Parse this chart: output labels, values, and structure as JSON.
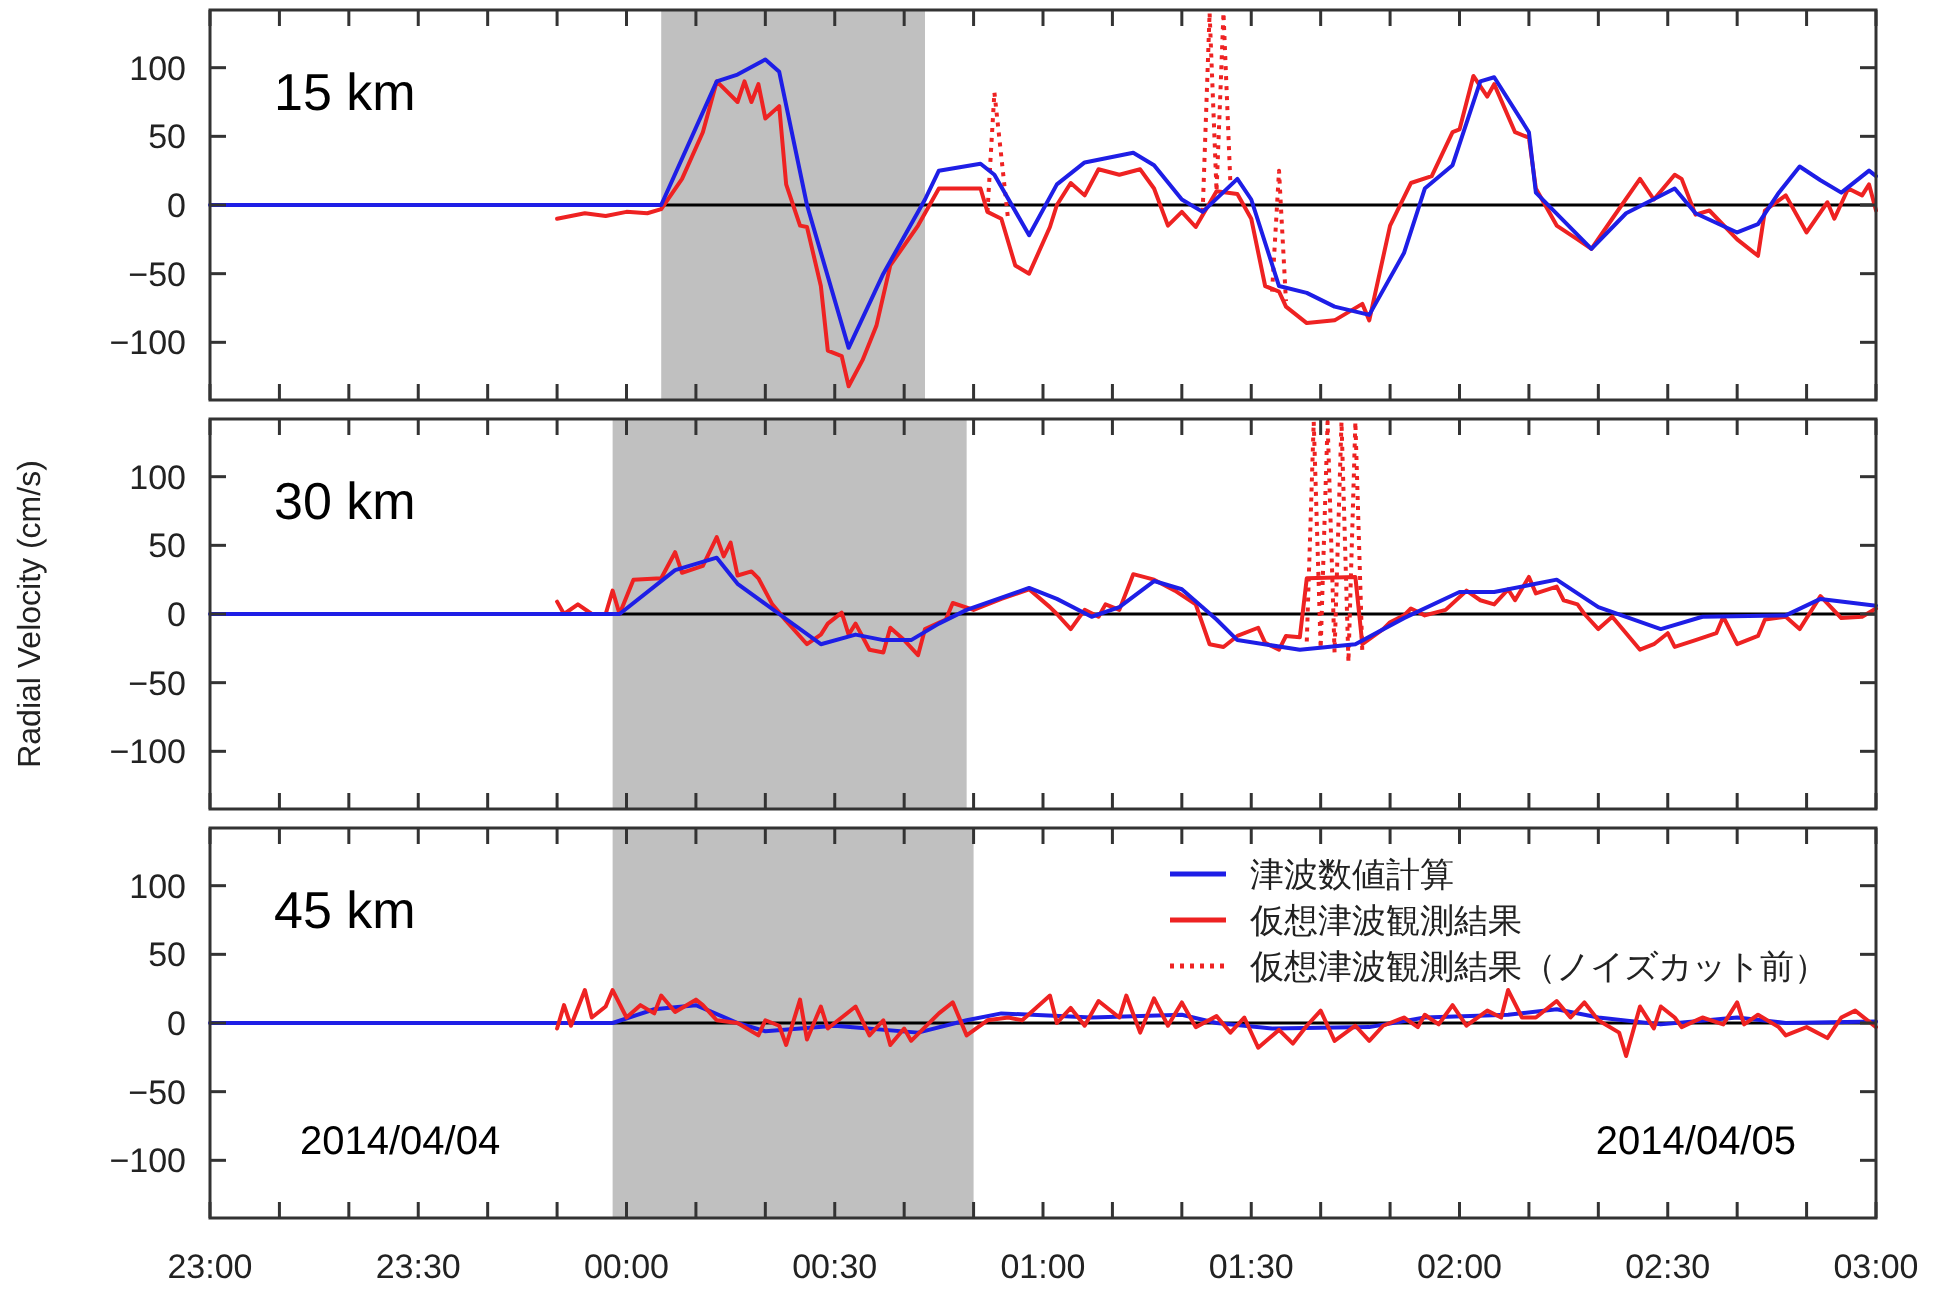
{
  "chart_data": [
    {
      "type": "line",
      "annotations": [
        "15 km"
      ],
      "xlim": [
        "2014-04-04T23:00",
        "2014-04-05T03:00"
      ],
      "ylim": [
        -142,
        142
      ],
      "yticks": [
        -100,
        -50,
        0,
        50,
        100
      ],
      "tick_labels": "y",
      "legend": false,
      "xticks": [
        {
          "value": "2014-04-04T23:00",
          "label": null
        },
        {
          "value": "2014-04-04T23:10",
          "label": null
        },
        {
          "value": "2014-04-04T23:20",
          "label": null
        },
        {
          "value": "2014-04-04T23:30",
          "label": null
        },
        {
          "value": "2014-04-04T23:40",
          "label": null
        },
        {
          "value": "2014-04-04T23:50",
          "label": null
        },
        {
          "value": "2014-04-05T00:00",
          "label": null
        },
        {
          "value": "2014-04-05T00:10",
          "label": null
        },
        {
          "value": "2014-04-05T00:20",
          "label": null
        },
        {
          "value": "2014-04-05T00:30",
          "label": null
        },
        {
          "value": "2014-04-05T00:40",
          "label": null
        },
        {
          "value": "2014-04-05T00:50",
          "label": null
        },
        {
          "value": "2014-04-05T01:00",
          "label": null
        },
        {
          "value": "2014-04-05T01:10",
          "label": null
        },
        {
          "value": "2014-04-05T01:20",
          "label": null
        },
        {
          "value": "2014-04-05T01:30",
          "label": null
        },
        {
          "value": "2014-04-05T01:40",
          "label": null
        },
        {
          "value": "2014-04-05T01:50",
          "label": null
        },
        {
          "value": "2014-04-05T02:00",
          "label": null
        },
        {
          "value": "2014-04-05T02:10",
          "label": null
        },
        {
          "value": "2014-04-05T02:20",
          "label": null
        },
        {
          "value": "2014-04-05T02:30",
          "label": null
        },
        {
          "value": "2014-04-05T02:40",
          "label": null
        },
        {
          "value": "2014-04-05T02:50",
          "label": null
        },
        {
          "value": "2014-04-05T03:00",
          "label": null
        }
      ],
      "bands": [
        {
          "axis": "x",
          "from": "2014-04-05T00:05",
          "to": "2014-04-05T00:43",
          "color": "#c0c0c0"
        }
      ],
      "ref_lines": [
        {
          "axis": "y",
          "value": 0,
          "color": "#000000"
        }
      ],
      "series": [
        {
          "color": "#ee2222",
          "line_style": "solid",
          "x": [
            "2014-04-04T23:50",
            "2014-04-04T23:54",
            "2014-04-04T23:57",
            "2014-04-05T00:00",
            "2014-04-05T00:03",
            "2014-04-05T00:05",
            "2014-04-05T00:08",
            "2014-04-05T00:11",
            "2014-04-05T00:13",
            "2014-04-05T00:16",
            "2014-04-05T00:17",
            "2014-04-05T00:18",
            "2014-04-05T00:19",
            "2014-04-05T00:20",
            "2014-04-05T00:22",
            "2014-04-05T00:23",
            "2014-04-05T00:25",
            "2014-04-05T00:26",
            "2014-04-05T00:28",
            "2014-04-05T00:29",
            "2014-04-05T00:31",
            "2014-04-05T00:32",
            "2014-04-05T00:34",
            "2014-04-05T00:36",
            "2014-04-05T00:38",
            "2014-04-05T00:42",
            "2014-04-05T00:45",
            "2014-04-05T00:51",
            "2014-04-05T00:52",
            "2014-04-05T00:54",
            "2014-04-05T00:56",
            "2014-04-05T00:58",
            "2014-04-05T01:01",
            "2014-04-05T01:02",
            "2014-04-05T01:04",
            "2014-04-05T01:06",
            "2014-04-05T01:08",
            "2014-04-05T01:11",
            "2014-04-05T01:14",
            "2014-04-05T01:16",
            "2014-04-05T01:18",
            "2014-04-05T01:20",
            "2014-04-05T01:22",
            "2014-04-05T01:25",
            "2014-04-05T01:28",
            "2014-04-05T01:30",
            "2014-04-05T01:32",
            "2014-04-05T01:34",
            "2014-04-05T01:35",
            "2014-04-05T01:38",
            "2014-04-05T01:42",
            "2014-04-05T01:46",
            "2014-04-05T01:47",
            "2014-04-05T01:50",
            "2014-04-05T01:53",
            "2014-04-05T01:56",
            "2014-04-05T01:59",
            "2014-04-05T02:00",
            "2014-04-05T02:02",
            "2014-04-05T02:04",
            "2014-04-05T02:05",
            "2014-04-05T02:08",
            "2014-04-05T02:10",
            "2014-04-05T02:11",
            "2014-04-05T02:14",
            "2014-04-05T02:17",
            "2014-04-05T02:19",
            "2014-04-05T02:22",
            "2014-04-05T02:26",
            "2014-04-05T02:28",
            "2014-04-05T02:31",
            "2014-04-05T02:32",
            "2014-04-05T02:34",
            "2014-04-05T02:36",
            "2014-04-05T02:40",
            "2014-04-05T02:43",
            "2014-04-05T02:44",
            "2014-04-05T02:47",
            "2014-04-05T02:50",
            "2014-04-05T02:53",
            "2014-04-05T02:54",
            "2014-04-05T02:56",
            "2014-04-05T02:58",
            "2014-04-05T02:59",
            "2014-04-05T03:00"
          ],
          "values": [
            -10,
            -6,
            -8,
            -5,
            -6,
            -3,
            19,
            53,
            90,
            75,
            90,
            75,
            88,
            63,
            72,
            15,
            -15,
            -16,
            -59,
            -106,
            -110,
            -132,
            -113,
            -88,
            -44,
            -15,
            12,
            12,
            -5,
            -10,
            -44,
            -50,
            -16,
            0,
            16,
            7,
            26,
            22,
            26,
            12,
            -15,
            -5,
            -16,
            10,
            8,
            -10,
            -59,
            -63,
            -74,
            -86,
            -84,
            -72,
            -84,
            -15,
            16,
            21,
            53,
            55,
            94,
            79,
            88,
            53,
            49,
            12,
            -15,
            -25,
            -32,
            -10,
            19,
            4,
            22,
            19,
            -7,
            -4,
            -25,
            -37,
            -4,
            7,
            -20,
            2,
            -10,
            12,
            7,
            15,
            -4
          ]
        },
        {
          "color": "#ee2222",
          "line_style": "dotted",
          "x": [
            "2014-04-05T00:52",
            "2014-04-05T00:53",
            "2014-04-05T00:55",
            "2014-04-05T00:56",
            "2014-04-05T01:23",
            "2014-04-05T01:24",
            "2014-04-05T01:25",
            "2014-04-05T01:26",
            "2014-04-05T01:27",
            "2014-04-05T01:28",
            "2014-04-05T01:33",
            "2014-04-05T01:34",
            "2014-04-05T01:35"
          ],
          "values": [
            -5,
            82,
            -12,
            null,
            -5,
            140,
            10,
            140,
            15,
            null,
            -63,
            25,
            -70
          ]
        },
        {
          "color": "#1e1ee6",
          "line_style": "solid",
          "x": [
            "2014-04-04T23:00",
            "2014-04-05T00:05",
            "2014-04-05T00:13",
            "2014-04-05T00:16",
            "2014-04-05T00:20",
            "2014-04-05T00:22",
            "2014-04-05T00:26",
            "2014-04-05T00:32",
            "2014-04-05T00:37",
            "2014-04-05T00:43",
            "2014-04-05T00:45",
            "2014-04-05T00:51",
            "2014-04-05T00:53",
            "2014-04-05T00:58",
            "2014-04-05T01:02",
            "2014-04-05T01:06",
            "2014-04-05T01:13",
            "2014-04-05T01:16",
            "2014-04-05T01:20",
            "2014-04-05T01:23",
            "2014-04-05T01:28",
            "2014-04-05T01:30",
            "2014-04-05T01:34",
            "2014-04-05T01:38",
            "2014-04-05T01:42",
            "2014-04-05T01:47",
            "2014-04-05T01:52",
            "2014-04-05T01:55",
            "2014-04-05T01:59",
            "2014-04-05T02:03",
            "2014-04-05T02:05",
            "2014-04-05T02:10",
            "2014-04-05T02:11",
            "2014-04-05T02:19",
            "2014-04-05T02:24",
            "2014-04-05T02:31",
            "2014-04-05T02:34",
            "2014-04-05T02:40",
            "2014-04-05T02:43",
            "2014-04-05T02:46",
            "2014-04-05T02:49",
            "2014-04-05T02:52",
            "2014-04-05T02:55",
            "2014-04-05T02:59",
            "2014-04-05T03:00"
          ],
          "values": [
            0,
            0,
            90,
            95,
            106,
            97,
            0,
            -104,
            -50,
            4,
            25,
            30,
            22,
            -22,
            15,
            31,
            38,
            29,
            4,
            -5,
            19,
            4,
            -59,
            -64,
            -74,
            -80,
            -35,
            12,
            29,
            90,
            93,
            53,
            9,
            -32,
            -6,
            12,
            -6,
            -20,
            -14,
            9,
            28,
            18,
            9,
            25,
            21
          ]
        }
      ]
    },
    {
      "type": "line",
      "annotations": [
        "30 km"
      ],
      "ylabel": "Radial Velocity (cm/s)",
      "xlim": [
        "2014-04-04T23:00",
        "2014-04-05T03:00"
      ],
      "ylim": [
        -142,
        142
      ],
      "yticks": [
        -100,
        -50,
        0,
        50,
        100
      ],
      "tick_labels": "y",
      "legend": false,
      "xticks": [
        {
          "value": "2014-04-04T23:00",
          "label": null
        },
        {
          "value": "2014-04-04T23:10",
          "label": null
        },
        {
          "value": "2014-04-04T23:20",
          "label": null
        },
        {
          "value": "2014-04-04T23:30",
          "label": null
        },
        {
          "value": "2014-04-04T23:40",
          "label": null
        },
        {
          "value": "2014-04-04T23:50",
          "label": null
        },
        {
          "value": "2014-04-05T00:00",
          "label": null
        },
        {
          "value": "2014-04-05T00:10",
          "label": null
        },
        {
          "value": "2014-04-05T00:20",
          "label": null
        },
        {
          "value": "2014-04-05T00:30",
          "label": null
        },
        {
          "value": "2014-04-05T00:40",
          "label": null
        },
        {
          "value": "2014-04-05T00:50",
          "label": null
        },
        {
          "value": "2014-04-05T01:00",
          "label": null
        },
        {
          "value": "2014-04-05T01:10",
          "label": null
        },
        {
          "value": "2014-04-05T01:20",
          "label": null
        },
        {
          "value": "2014-04-05T01:30",
          "label": null
        },
        {
          "value": "2014-04-05T01:40",
          "label": null
        },
        {
          "value": "2014-04-05T01:50",
          "label": null
        },
        {
          "value": "2014-04-05T02:00",
          "label": null
        },
        {
          "value": "2014-04-05T02:10",
          "label": null
        },
        {
          "value": "2014-04-05T02:20",
          "label": null
        },
        {
          "value": "2014-04-05T02:30",
          "label": null
        },
        {
          "value": "2014-04-05T02:40",
          "label": null
        },
        {
          "value": "2014-04-05T02:50",
          "label": null
        },
        {
          "value": "2014-04-05T03:00",
          "label": null
        }
      ],
      "bands": [
        {
          "axis": "x",
          "from": "2014-04-04T23:58",
          "to": "2014-04-05T00:49",
          "color": "#c0c0c0"
        }
      ],
      "ref_lines": [
        {
          "axis": "y",
          "value": 0,
          "color": "#000000"
        }
      ],
      "series": [
        {
          "color": "#ee2222",
          "line_style": "solid",
          "x": [
            "2014-04-04T23:50",
            "2014-04-04T23:51",
            "2014-04-04T23:53",
            "2014-04-04T23:55",
            "2014-04-04T23:57",
            "2014-04-04T23:58",
            "2014-04-04T23:59",
            "2014-04-05T00:01",
            "2014-04-05T00:05",
            "2014-04-05T00:07",
            "2014-04-05T00:08",
            "2014-04-05T00:11",
            "2014-04-05T00:13",
            "2014-04-05T00:14",
            "2014-04-05T00:15",
            "2014-04-05T00:16",
            "2014-04-05T00:18",
            "2014-04-05T00:19",
            "2014-04-05T00:21",
            "2014-04-05T00:23",
            "2014-04-05T00:26",
            "2014-04-05T00:28",
            "2014-04-05T00:29",
            "2014-04-05T00:31",
            "2014-04-05T00:32",
            "2014-04-05T00:33",
            "2014-04-05T00:35",
            "2014-04-05T00:37",
            "2014-04-05T00:38",
            "2014-04-05T00:40",
            "2014-04-05T00:42",
            "2014-04-05T00:43",
            "2014-04-05T00:46",
            "2014-04-05T00:47",
            "2014-04-05T00:50",
            "2014-04-05T00:54",
            "2014-04-05T00:58",
            "2014-04-05T01:01",
            "2014-04-05T01:02",
            "2014-04-05T01:04",
            "2014-04-05T01:06",
            "2014-04-05T01:08",
            "2014-04-05T01:09",
            "2014-04-05T01:11",
            "2014-04-05T01:13",
            "2014-04-05T01:16",
            "2014-04-05T01:19",
            "2014-04-05T01:22",
            "2014-04-05T01:24",
            "2014-04-05T01:26",
            "2014-04-05T01:28",
            "2014-04-05T01:31",
            "2014-04-05T01:32",
            "2014-04-05T01:34",
            "2014-04-05T01:35",
            "2014-04-05T01:37",
            "2014-04-05T01:38",
            "2014-04-05T01:45",
            "2014-04-05T01:46",
            "2014-04-05T01:49",
            "2014-04-05T01:50",
            "2014-04-05T01:52",
            "2014-04-05T01:53",
            "2014-04-05T01:55",
            "2014-04-05T01:58",
            "2014-04-05T02:01",
            "2014-04-05T02:03",
            "2014-04-05T02:05",
            "2014-04-05T02:07",
            "2014-04-05T02:08",
            "2014-04-05T02:10",
            "2014-04-05T02:11",
            "2014-04-05T02:14",
            "2014-04-05T02:15",
            "2014-04-05T02:17",
            "2014-04-05T02:18",
            "2014-04-05T02:20",
            "2014-04-05T02:22",
            "2014-04-05T02:24",
            "2014-04-05T02:26",
            "2014-04-05T02:28",
            "2014-04-05T02:30",
            "2014-04-05T02:31",
            "2014-04-05T02:34",
            "2014-04-05T02:37",
            "2014-04-05T02:38",
            "2014-04-05T02:40",
            "2014-04-05T02:43",
            "2014-04-05T02:44",
            "2014-04-05T02:47",
            "2014-04-05T02:49",
            "2014-04-05T02:52",
            "2014-04-05T02:55",
            "2014-04-05T02:58",
            "2014-04-05T03:00"
          ],
          "values": [
            9,
            0,
            7,
            0,
            0,
            17,
            0,
            25,
            26,
            45,
            30,
            35,
            56,
            42,
            52,
            28,
            31,
            26,
            7,
            -5,
            -22,
            -15,
            -7,
            1,
            -15,
            -7,
            -26,
            -28,
            -10,
            -19,
            -30,
            -11,
            -4,
            8,
            3,
            11,
            18,
            5,
            0,
            -11,
            3,
            -2,
            7,
            3,
            29,
            25,
            17,
            7,
            -22,
            -24,
            -16,
            -10,
            -21,
            -26,
            -16,
            -17,
            26,
            27,
            -22,
            -11,
            -6,
            -1,
            4,
            -1,
            3,
            17,
            10,
            7,
            18,
            10,
            27,
            15,
            20,
            10,
            7,
            0,
            -11,
            -2,
            -14,
            -26,
            -22,
            -14,
            -24,
            -19,
            -14,
            -2,
            -22,
            -16,
            -4,
            -2,
            -11,
            13,
            -3,
            -2,
            4
          ]
        },
        {
          "color": "#ee2222",
          "line_style": "dotted",
          "x": [
            "2014-04-05T01:38",
            "2014-04-05T01:39",
            "2014-04-05T01:40",
            "2014-04-05T01:41",
            "2014-04-05T01:42",
            "2014-04-05T01:43",
            "2014-04-05T01:44",
            "2014-04-05T01:45",
            "2014-04-05T01:46"
          ],
          "values": [
            -20,
            140,
            -25,
            140,
            -28,
            140,
            -35,
            140,
            -28
          ]
        },
        {
          "color": "#1e1ee6",
          "line_style": "solid",
          "x": [
            "2014-04-04T23:00",
            "2014-04-04T23:59",
            "2014-04-05T00:07",
            "2014-04-05T00:13",
            "2014-04-05T00:16",
            "2014-04-05T00:22",
            "2014-04-05T00:28",
            "2014-04-05T00:33",
            "2014-04-05T00:37",
            "2014-04-05T00:41",
            "2014-04-05T00:45",
            "2014-04-05T00:49",
            "2014-04-05T00:58",
            "2014-04-05T01:02",
            "2014-04-05T01:07",
            "2014-04-05T01:11",
            "2014-04-05T01:16",
            "2014-04-05T01:20",
            "2014-04-05T01:25",
            "2014-04-05T01:28",
            "2014-04-05T01:37",
            "2014-04-05T01:45",
            "2014-04-05T01:52",
            "2014-04-05T02:00",
            "2014-04-05T02:05",
            "2014-04-05T02:14",
            "2014-04-05T02:20",
            "2014-04-05T02:29",
            "2014-04-05T02:35",
            "2014-04-05T02:47",
            "2014-04-05T02:52",
            "2014-04-05T03:00"
          ],
          "values": [
            0,
            0,
            32,
            41,
            22,
            0,
            -22,
            -15,
            -19,
            -19,
            -7,
            3,
            19,
            11,
            -2,
            5,
            24,
            18,
            -4,
            -19,
            -26,
            -22,
            -3,
            16,
            16,
            25,
            5,
            -11,
            -2,
            -1,
            11,
            6
          ]
        }
      ]
    },
    {
      "type": "line",
      "annotations": [
        "45 km",
        "2014/04/04",
        "2014/04/05"
      ],
      "xlim": [
        "2014-04-04T23:00",
        "2014-04-05T03:00"
      ],
      "ylim": [
        -142,
        142
      ],
      "yticks": [
        -100,
        -50,
        0,
        50,
        100
      ],
      "legend": "top right",
      "xticks": [
        {
          "value": "2014-04-04T23:00",
          "label": "23:00"
        },
        {
          "value": "2014-04-04T23:10",
          "label": null
        },
        {
          "value": "2014-04-04T23:20",
          "label": null
        },
        {
          "value": "2014-04-04T23:30",
          "label": "23:30"
        },
        {
          "value": "2014-04-04T23:40",
          "label": null
        },
        {
          "value": "2014-04-04T23:50",
          "label": null
        },
        {
          "value": "2014-04-05T00:00",
          "label": "00:00"
        },
        {
          "value": "2014-04-05T00:10",
          "label": null
        },
        {
          "value": "2014-04-05T00:20",
          "label": null
        },
        {
          "value": "2014-04-05T00:30",
          "label": "00:30"
        },
        {
          "value": "2014-04-05T00:40",
          "label": null
        },
        {
          "value": "2014-04-05T00:50",
          "label": null
        },
        {
          "value": "2014-04-05T01:00",
          "label": "01:00"
        },
        {
          "value": "2014-04-05T01:10",
          "label": null
        },
        {
          "value": "2014-04-05T01:20",
          "label": null
        },
        {
          "value": "2014-04-05T01:30",
          "label": "01:30"
        },
        {
          "value": "2014-04-05T01:40",
          "label": null
        },
        {
          "value": "2014-04-05T01:50",
          "label": null
        },
        {
          "value": "2014-04-05T02:00",
          "label": "02:00"
        },
        {
          "value": "2014-04-05T02:10",
          "label": null
        },
        {
          "value": "2014-04-05T02:20",
          "label": null
        },
        {
          "value": "2014-04-05T02:30",
          "label": "02:30"
        },
        {
          "value": "2014-04-05T02:40",
          "label": null
        },
        {
          "value": "2014-04-05T02:50",
          "label": null
        },
        {
          "value": "2014-04-05T03:00",
          "label": "03:00"
        }
      ],
      "bands": [
        {
          "axis": "x",
          "from": "2014-04-04T23:58",
          "to": "2014-04-05T00:50",
          "color": "#c0c0c0"
        }
      ],
      "ref_lines": [
        {
          "axis": "y",
          "value": 0,
          "color": "#000000"
        }
      ],
      "series": [
        {
          "name": "津波数値計算",
          "color": "#1e1ee6",
          "line_style": "solid",
          "x": [
            "2014-04-04T23:00",
            "2014-04-04T23:58",
            "2014-04-05T00:04",
            "2014-04-05T00:10",
            "2014-04-05T00:16",
            "2014-04-05T00:20",
            "2014-04-05T00:30",
            "2014-04-05T00:42",
            "2014-04-05T00:49",
            "2014-04-05T00:54",
            "2014-04-05T01:07",
            "2014-04-05T01:20",
            "2014-04-05T01:25",
            "2014-04-05T01:33",
            "2014-04-05T01:47",
            "2014-04-05T01:55",
            "2014-04-05T02:07",
            "2014-04-05T02:14",
            "2014-04-05T02:20",
            "2014-04-05T02:29",
            "2014-04-05T02:40",
            "2014-04-05T02:47",
            "2014-04-05T03:00"
          ],
          "values": [
            0,
            0,
            10,
            13,
            0,
            -6,
            -2,
            -7,
            2,
            7,
            4,
            6,
            0,
            -4,
            -3,
            4,
            6,
            10,
            4,
            -1,
            4,
            0,
            1
          ]
        },
        {
          "name": "仮想津波観測結果",
          "color": "#ee2222",
          "line_style": "solid",
          "x": [
            "2014-04-04T23:50",
            "2014-04-04T23:51",
            "2014-04-04T23:52",
            "2014-04-04T23:54",
            "2014-04-04T23:55",
            "2014-04-04T23:57",
            "2014-04-04T23:58",
            "2014-04-05T00:00",
            "2014-04-05T00:02",
            "2014-04-05T00:04",
            "2014-04-05T00:05",
            "2014-04-05T00:07",
            "2014-04-05T00:10",
            "2014-04-05T00:11",
            "2014-04-05T00:13",
            "2014-04-05T00:16",
            "2014-04-05T00:19",
            "2014-04-05T00:20",
            "2014-04-05T00:22",
            "2014-04-05T00:23",
            "2014-04-05T00:25",
            "2014-04-05T00:26",
            "2014-04-05T00:28",
            "2014-04-05T00:29",
            "2014-04-05T00:31",
            "2014-04-05T00:33",
            "2014-04-05T00:35",
            "2014-04-05T00:37",
            "2014-04-05T00:38",
            "2014-04-05T00:40",
            "2014-04-05T00:41",
            "2014-04-05T00:43",
            "2014-04-05T00:45",
            "2014-04-05T00:47",
            "2014-04-05T00:49",
            "2014-04-05T00:52",
            "2014-04-05T00:55",
            "2014-04-05T00:57",
            "2014-04-05T01:01",
            "2014-04-05T01:02",
            "2014-04-05T01:04",
            "2014-04-05T01:06",
            "2014-04-05T01:08",
            "2014-04-05T01:11",
            "2014-04-05T01:12",
            "2014-04-05T01:14",
            "2014-04-05T01:16",
            "2014-04-05T01:18",
            "2014-04-05T01:20",
            "2014-04-05T01:22",
            "2014-04-05T01:25",
            "2014-04-05T01:27",
            "2014-04-05T01:29",
            "2014-04-05T01:31",
            "2014-04-05T01:34",
            "2014-04-05T01:36",
            "2014-04-05T01:38",
            "2014-04-05T01:40",
            "2014-04-05T01:42",
            "2014-04-05T01:45",
            "2014-04-05T01:47",
            "2014-04-05T01:49",
            "2014-04-05T01:52",
            "2014-04-05T01:54",
            "2014-04-05T01:55",
            "2014-04-05T01:57",
            "2014-04-05T01:59",
            "2014-04-05T02:01",
            "2014-04-05T02:04",
            "2014-04-05T02:06",
            "2014-04-05T02:07",
            "2014-04-05T02:09",
            "2014-04-05T02:11",
            "2014-04-05T02:14",
            "2014-04-05T02:16",
            "2014-04-05T02:18",
            "2014-04-05T02:20",
            "2014-04-05T02:23",
            "2014-04-05T02:24",
            "2014-04-05T02:26",
            "2014-04-05T02:28",
            "2014-04-05T02:29",
            "2014-04-05T02:31",
            "2014-04-05T02:32",
            "2014-04-05T02:35",
            "2014-04-05T02:38",
            "2014-04-05T02:40",
            "2014-04-05T02:41",
            "2014-04-05T02:43",
            "2014-04-05T02:46",
            "2014-04-05T02:47",
            "2014-04-05T02:50",
            "2014-04-05T02:53",
            "2014-04-05T02:55",
            "2014-04-05T02:57",
            "2014-04-05T03:00"
          ],
          "values": [
            -4,
            13,
            -2,
            24,
            4,
            12,
            24,
            4,
            13,
            7,
            20,
            8,
            17,
            13,
            2,
            0,
            -9,
            2,
            -2,
            -16,
            17,
            -12,
            12,
            -4,
            4,
            12,
            -9,
            2,
            -16,
            -4,
            -13,
            -3,
            7,
            15,
            -9,
            2,
            4,
            2,
            20,
            0,
            11,
            -2,
            16,
            4,
            20,
            -7,
            18,
            -2,
            15,
            -3,
            5,
            -7,
            4,
            -18,
            -5,
            -15,
            -2,
            9,
            -13,
            -2,
            -13,
            -2,
            4,
            -3,
            6,
            -1,
            13,
            -2,
            9,
            4,
            24,
            4,
            4,
            16,
            4,
            15,
            2,
            -7,
            -24,
            12,
            -4,
            12,
            4,
            -3,
            4,
            -1,
            15,
            -1,
            6,
            -3,
            -9,
            -3,
            -11,
            4,
            9,
            -3
          ]
        },
        {
          "name": "仮想津波観測結果（ノイズカット前）",
          "color": "#ee2222",
          "line_style": "dotted"
        }
      ]
    }
  ]
}
